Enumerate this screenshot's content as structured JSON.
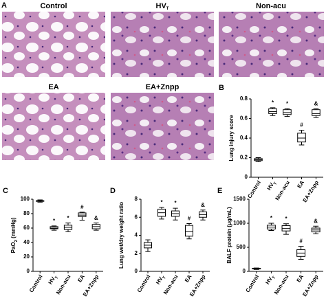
{
  "panel_a": {
    "letter": "A",
    "images": [
      {
        "label": "Control"
      },
      {
        "label": "HV",
        "label_sub": "T"
      },
      {
        "label": "Non-acu"
      },
      {
        "label": "EA"
      },
      {
        "label": "EA+Znpp"
      }
    ]
  },
  "chart_data": [
    {
      "type": "box",
      "panel_label": "B",
      "ylabel": "Lung injury score",
      "categories": [
        "Control",
        "HV",
        "Non-acu",
        "EA",
        "EA+Znpp"
      ],
      "category_subs": [
        null,
        "T",
        null,
        null,
        null
      ],
      "values": [
        {
          "min": 0.16,
          "q1": 0.17,
          "median": 0.18,
          "q3": 0.19,
          "max": 0.2
        },
        {
          "min": 0.63,
          "q1": 0.65,
          "median": 0.67,
          "q3": 0.7,
          "max": 0.71
        },
        {
          "min": 0.62,
          "q1": 0.64,
          "median": 0.66,
          "q3": 0.69,
          "max": 0.7
        },
        {
          "min": 0.33,
          "q1": 0.36,
          "median": 0.4,
          "q3": 0.45,
          "max": 0.48
        },
        {
          "min": 0.61,
          "q1": 0.63,
          "median": 0.65,
          "q3": 0.69,
          "max": 0.7
        }
      ],
      "annotations": [
        null,
        "*",
        "*",
        "#",
        "&"
      ],
      "ylim": [
        0,
        0.8
      ],
      "yticks": [
        0,
        0.2,
        0.4,
        0.6,
        0.8
      ]
    },
    {
      "type": "box",
      "panel_label": "C",
      "ylabel": "PaO",
      "ylabel_sub": "2",
      "ylabel_rest": " (mmHg)",
      "categories": [
        "Control",
        "HV",
        "Non-acu",
        "EA",
        "EA+Znpp"
      ],
      "category_subs": [
        null,
        "T",
        null,
        null,
        null
      ],
      "values": [
        {
          "min": 96,
          "q1": 97,
          "median": 97.5,
          "q3": 98,
          "max": 99
        },
        {
          "min": 57,
          "q1": 59,
          "median": 60,
          "q3": 62,
          "max": 63
        },
        {
          "min": 55,
          "q1": 58,
          "median": 61,
          "q3": 64,
          "max": 67
        },
        {
          "min": 71,
          "q1": 76,
          "median": 78,
          "q3": 81,
          "max": 82
        },
        {
          "min": 57,
          "q1": 59,
          "median": 62,
          "q3": 65,
          "max": 67
        }
      ],
      "annotations": [
        null,
        "*",
        "*",
        "#",
        "&"
      ],
      "ylim": [
        0,
        100
      ],
      "yticks": [
        0,
        20,
        40,
        60,
        80,
        100
      ]
    },
    {
      "type": "box",
      "panel_label": "D",
      "ylabel": "Lung wet/dry weight ratio",
      "categories": [
        "Control",
        "HV",
        "Non-acu",
        "EA",
        "EA+Znpp"
      ],
      "category_subs": [
        null,
        "T",
        null,
        null,
        null
      ],
      "values": [
        {
          "min": 2.2,
          "q1": 2.6,
          "median": 2.9,
          "q3": 3.2,
          "max": 3.5
        },
        {
          "min": 5.8,
          "q1": 6.1,
          "median": 6.5,
          "q3": 6.9,
          "max": 7.1
        },
        {
          "min": 5.7,
          "q1": 6.1,
          "median": 6.4,
          "q3": 6.7,
          "max": 7.0
        },
        {
          "min": 3.6,
          "q1": 3.9,
          "median": 4.4,
          "q3": 5.1,
          "max": 5.3
        },
        {
          "min": 5.7,
          "q1": 6.0,
          "median": 6.3,
          "q3": 6.6,
          "max": 6.8
        }
      ],
      "annotations": [
        null,
        "*",
        "*",
        "#",
        "&"
      ],
      "ylim": [
        0,
        8
      ],
      "yticks": [
        0,
        2,
        4,
        6,
        8
      ]
    },
    {
      "type": "box",
      "panel_label": "E",
      "ylabel": "BALF protein (μg/mL)",
      "categories": [
        "Control",
        "HV",
        "Non-acu",
        "EA",
        "EA+Znpp"
      ],
      "category_subs": [
        null,
        "T",
        null,
        null,
        null
      ],
      "values": [
        {
          "min": 40,
          "q1": 50,
          "median": 55,
          "q3": 65,
          "max": 70
        },
        {
          "min": 850,
          "q1": 880,
          "median": 920,
          "q3": 960,
          "max": 1000
        },
        {
          "min": 770,
          "q1": 840,
          "median": 890,
          "q3": 950,
          "max": 990
        },
        {
          "min": 250,
          "q1": 310,
          "median": 380,
          "q3": 450,
          "max": 520
        },
        {
          "min": 780,
          "q1": 820,
          "median": 860,
          "q3": 900,
          "max": 940
        }
      ],
      "annotations": [
        null,
        "*",
        "*",
        "#",
        "&"
      ],
      "ylim": [
        0,
        1500
      ],
      "yticks": [
        0,
        500,
        1000,
        1500
      ]
    }
  ]
}
